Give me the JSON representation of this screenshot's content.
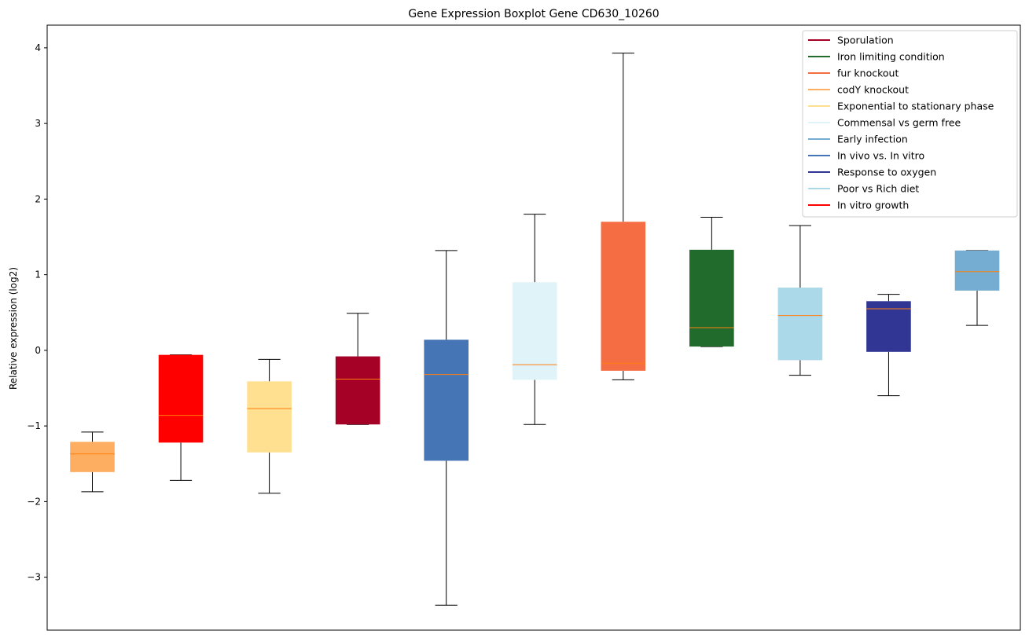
{
  "chart_data": {
    "type": "boxplot",
    "title": "Gene Expression Boxplot Gene CD630_10260",
    "xlabel": "",
    "ylabel": "Relative expression (log2)",
    "ylim": [
      -3.7,
      4.3
    ],
    "yticks": [
      4,
      3,
      2,
      1,
      0,
      -1,
      -2,
      -3
    ],
    "ytick_labels": [
      "4",
      "3",
      "2",
      "1",
      "0",
      "−1",
      "−2",
      "−3"
    ],
    "legend_position": "top-right",
    "median_color": "#ff7f0e",
    "boxes": [
      {
        "color": "#fdae61",
        "whislo": -1.87,
        "q1": -1.61,
        "med": -1.37,
        "q3": -1.21,
        "whishi": -1.08
      },
      {
        "color": "#ff0000",
        "whislo": -1.72,
        "q1": -1.22,
        "med": -0.86,
        "q3": -0.06,
        "whishi": -0.06
      },
      {
        "color": "#fee090",
        "whislo": -1.89,
        "q1": -1.35,
        "med": -0.77,
        "q3": -0.41,
        "whishi": -0.12
      },
      {
        "color": "#a50026",
        "whislo": -0.98,
        "q1": -0.98,
        "med": -0.38,
        "q3": -0.08,
        "whishi": 0.49
      },
      {
        "color": "#4575b4",
        "whislo": -3.37,
        "q1": -1.46,
        "med": -0.32,
        "q3": 0.14,
        "whishi": 1.32
      },
      {
        "color": "#e0f3f8",
        "whislo": -0.98,
        "q1": -0.39,
        "med": -0.19,
        "q3": 0.9,
        "whishi": 1.8
      },
      {
        "color": "#f46d43",
        "whislo": -0.39,
        "q1": -0.27,
        "med": -0.17,
        "q3": 1.7,
        "whishi": 3.93
      },
      {
        "color": "#216b2d",
        "whislo": 0.05,
        "q1": 0.05,
        "med": 0.3,
        "q3": 1.33,
        "whishi": 1.76
      },
      {
        "color": "#abd9e9",
        "whislo": -0.33,
        "q1": -0.13,
        "med": 0.46,
        "q3": 0.83,
        "whishi": 1.65
      },
      {
        "color": "#313695",
        "whislo": -0.6,
        "q1": -0.02,
        "med": 0.55,
        "q3": 0.65,
        "whishi": 0.74
      },
      {
        "color": "#74add1",
        "whislo": 0.33,
        "q1": 0.79,
        "med": 1.04,
        "q3": 1.32,
        "whishi": 1.32
      }
    ],
    "legend": [
      {
        "label": "Sporulation",
        "color": "#a50026"
      },
      {
        "label": "Iron limiting condition",
        "color": "#216b2d"
      },
      {
        "label": "fur knockout",
        "color": "#f46d43"
      },
      {
        "label": "codY knockout",
        "color": "#fdae61"
      },
      {
        "label": "Exponential to stationary phase",
        "color": "#fee090"
      },
      {
        "label": "Commensal vs germ free",
        "color": "#e0f3f8"
      },
      {
        "label": "Early infection",
        "color": "#74add1"
      },
      {
        "label": "In vivo vs. In vitro",
        "color": "#4575b4"
      },
      {
        "label": "Response to oxygen",
        "color": "#313695"
      },
      {
        "label": "Poor vs Rich diet",
        "color": "#abd9e9"
      },
      {
        "label": "In vitro growth",
        "color": "#ff0000"
      }
    ]
  }
}
